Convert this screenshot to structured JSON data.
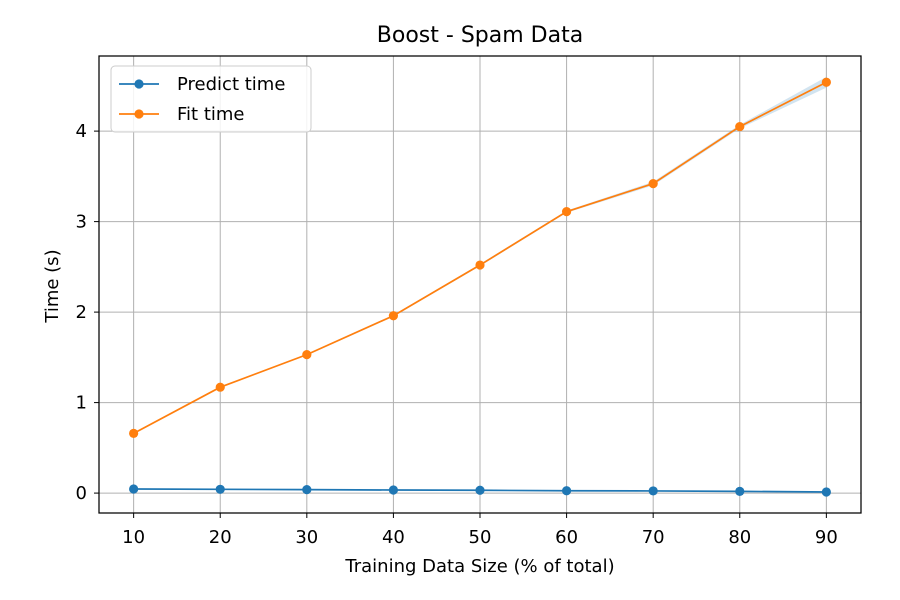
{
  "chart_data": {
    "type": "line",
    "title": "Boost - Spam Data",
    "xlabel": "Training Data Size (% of total)",
    "ylabel": "Time (s)",
    "x": [
      10,
      20,
      30,
      40,
      50,
      60,
      70,
      80,
      90
    ],
    "xlim": [
      6,
      94
    ],
    "ylim": [
      -0.22,
      4.83
    ],
    "xticks": [
      10,
      20,
      30,
      40,
      50,
      60,
      70,
      80,
      90
    ],
    "yticks": [
      0,
      1,
      2,
      3,
      4
    ],
    "grid": true,
    "legend_position": "top-left",
    "series": [
      {
        "name": "Predict time",
        "color": "#1f77b4",
        "values": [
          0.045,
          0.042,
          0.038,
          0.034,
          0.031,
          0.026,
          0.024,
          0.019,
          0.012
        ],
        "band": [
          0.0,
          0.0,
          0.0,
          0.0,
          0.0,
          0.0,
          0.0,
          0.0,
          0.0
        ]
      },
      {
        "name": "Fit time",
        "color": "#ff7f0e",
        "values": [
          0.66,
          1.17,
          1.53,
          1.96,
          2.52,
          3.11,
          3.42,
          4.05,
          4.54
        ],
        "band": [
          0.005,
          0.005,
          0.008,
          0.01,
          0.012,
          0.012,
          0.02,
          0.02,
          0.06
        ]
      }
    ]
  }
}
